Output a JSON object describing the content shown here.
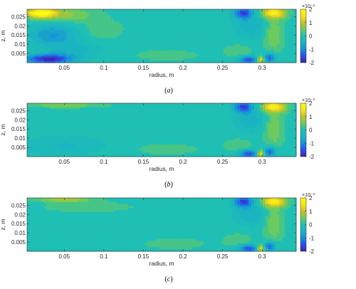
{
  "figure_colors": {
    "colormap": [
      "#3e26a8",
      "#2f4bf0",
      "#1592d9",
      "#1bb3c1",
      "#1fbfb4",
      "#6ccb5e",
      "#c8c129",
      "#f5e51a",
      "#f9fb0e"
    ]
  },
  "chart_data": [
    {
      "type": "heatmap",
      "caption_letter": "a",
      "xlabel": "radius, m",
      "ylabel": "z, m",
      "xlim": [
        0.003,
        0.343
      ],
      "ylim": [
        0.0,
        0.029
      ],
      "xticks": [
        0.05,
        0.1,
        0.15,
        0.2,
        0.25,
        0.3
      ],
      "xtick_labels": [
        "0.05",
        "0.1",
        "0.15",
        "0.2",
        "0.25",
        "0.3"
      ],
      "yticks": [
        0.005,
        0.01,
        0.015,
        0.02,
        0.025
      ],
      "ytick_labels": [
        "0.005",
        "0.01",
        "0.015",
        "0.02",
        "0.025"
      ],
      "colorbar": {
        "range": [
          -2,
          2
        ],
        "ticks": [
          2,
          1,
          0,
          -1,
          -2
        ],
        "tick_labels": [
          "2",
          "1",
          "0",
          "-1",
          "-2"
        ],
        "exponent_label": "×10⁻³"
      },
      "features": [
        {
          "r": 0.02,
          "z": 0.027,
          "value": 2.0,
          "sr": 0.018,
          "sz": 0.0025
        },
        {
          "r": 0.05,
          "z": 0.026,
          "value": 0.7,
          "sr": 0.04,
          "sz": 0.004
        },
        {
          "r": 0.1,
          "z": 0.018,
          "value": 0.35,
          "sr": 0.025,
          "sz": 0.005
        },
        {
          "r": 0.035,
          "z": 0.015,
          "value": -0.9,
          "sr": 0.03,
          "sz": 0.006
        },
        {
          "r": 0.03,
          "z": 0.002,
          "value": -2.0,
          "sr": 0.03,
          "sz": 0.0025
        },
        {
          "r": 0.065,
          "z": 0.007,
          "value": -0.5,
          "sr": 0.03,
          "sz": 0.004
        },
        {
          "r": 0.18,
          "z": 0.004,
          "value": 0.3,
          "sr": 0.04,
          "sz": 0.003
        },
        {
          "r": 0.276,
          "z": 0.027,
          "value": -1.6,
          "sr": 0.012,
          "sz": 0.003
        },
        {
          "r": 0.285,
          "z": 0.02,
          "value": -0.6,
          "sr": 0.018,
          "sz": 0.006
        },
        {
          "r": 0.315,
          "z": 0.027,
          "value": 1.7,
          "sr": 0.015,
          "sz": 0.003
        },
        {
          "r": 0.315,
          "z": 0.015,
          "value": 0.6,
          "sr": 0.012,
          "sz": 0.01
        },
        {
          "r": 0.283,
          "z": 0.0015,
          "value": -1.7,
          "sr": 0.012,
          "sz": 0.002
        },
        {
          "r": 0.298,
          "z": 0.0015,
          "value": 1.6,
          "sr": 0.005,
          "sz": 0.0018
        },
        {
          "r": 0.31,
          "z": 0.0025,
          "value": -1.5,
          "sr": 0.007,
          "sz": 0.0025
        },
        {
          "r": 0.27,
          "z": 0.006,
          "value": 0.3,
          "sr": 0.02,
          "sz": 0.004
        }
      ]
    },
    {
      "type": "heatmap",
      "caption_letter": "b",
      "xlabel": "radius, m",
      "ylabel": "z, m",
      "xlim": [
        0.003,
        0.343
      ],
      "ylim": [
        0.0,
        0.029
      ],
      "xticks": [
        0.05,
        0.1,
        0.15,
        0.2,
        0.25,
        0.3
      ],
      "xtick_labels": [
        "0.05",
        "0.1",
        "0.15",
        "0.2",
        "0.25",
        "0.3"
      ],
      "yticks": [
        0.005,
        0.01,
        0.015,
        0.02,
        0.025
      ],
      "ytick_labels": [
        "0.005",
        "0.01",
        "0.015",
        "0.02",
        "0.025"
      ],
      "colorbar": {
        "range": [
          -2,
          2
        ],
        "ticks": [
          2,
          1,
          0,
          -1,
          -2
        ],
        "tick_labels": [
          "2",
          "1",
          "0",
          "-1",
          "-2"
        ],
        "exponent_label": "×10⁻³"
      },
      "features": [
        {
          "r": 0.05,
          "z": 0.028,
          "value": 0.6,
          "sr": 0.05,
          "sz": 0.0015
        },
        {
          "r": 0.05,
          "z": 0.006,
          "value": -0.4,
          "sr": 0.05,
          "sz": 0.005
        },
        {
          "r": 0.18,
          "z": 0.004,
          "value": 0.3,
          "sr": 0.04,
          "sz": 0.003
        },
        {
          "r": 0.276,
          "z": 0.027,
          "value": -1.6,
          "sr": 0.012,
          "sz": 0.003
        },
        {
          "r": 0.285,
          "z": 0.02,
          "value": -0.6,
          "sr": 0.018,
          "sz": 0.006
        },
        {
          "r": 0.315,
          "z": 0.027,
          "value": 1.7,
          "sr": 0.015,
          "sz": 0.003
        },
        {
          "r": 0.315,
          "z": 0.015,
          "value": 0.6,
          "sr": 0.012,
          "sz": 0.01
        },
        {
          "r": 0.283,
          "z": 0.0015,
          "value": -1.7,
          "sr": 0.012,
          "sz": 0.002
        },
        {
          "r": 0.298,
          "z": 0.0015,
          "value": 1.6,
          "sr": 0.005,
          "sz": 0.0018
        },
        {
          "r": 0.31,
          "z": 0.0025,
          "value": -1.5,
          "sr": 0.007,
          "sz": 0.0025
        },
        {
          "r": 0.27,
          "z": 0.006,
          "value": 0.3,
          "sr": 0.02,
          "sz": 0.004
        }
      ]
    },
    {
      "type": "heatmap",
      "caption_letter": "c",
      "xlabel": "radius, m",
      "ylabel": "z, m",
      "xlim": [
        0.003,
        0.343
      ],
      "ylim": [
        0.0,
        0.029
      ],
      "xticks": [
        0.05,
        0.1,
        0.15,
        0.2,
        0.25,
        0.3
      ],
      "xtick_labels": [
        "0.05",
        "0.1",
        "0.15",
        "0.2",
        "0.25",
        "0.3"
      ],
      "yticks": [
        0.005,
        0.01,
        0.015,
        0.02,
        0.025
      ],
      "ytick_labels": [
        "0.005",
        "0.01",
        "0.015",
        "0.02",
        "0.025"
      ],
      "colorbar": {
        "range": [
          -2,
          2
        ],
        "ticks": [
          2,
          1,
          0,
          -1,
          -2
        ],
        "tick_labels": [
          "2",
          "1",
          "0",
          "-1",
          "-2"
        ],
        "exponent_label": "×10⁻³"
      },
      "features": [
        {
          "r": 0.05,
          "z": 0.028,
          "value": 0.9,
          "sr": 0.035,
          "sz": 0.0012
        },
        {
          "r": 0.08,
          "z": 0.024,
          "value": 0.3,
          "sr": 0.06,
          "sz": 0.003
        },
        {
          "r": 0.19,
          "z": 0.004,
          "value": 0.3,
          "sr": 0.04,
          "sz": 0.003
        },
        {
          "r": 0.276,
          "z": 0.027,
          "value": -1.6,
          "sr": 0.012,
          "sz": 0.003
        },
        {
          "r": 0.285,
          "z": 0.02,
          "value": -0.6,
          "sr": 0.018,
          "sz": 0.006
        },
        {
          "r": 0.315,
          "z": 0.027,
          "value": 1.7,
          "sr": 0.015,
          "sz": 0.003
        },
        {
          "r": 0.315,
          "z": 0.015,
          "value": 0.6,
          "sr": 0.012,
          "sz": 0.01
        },
        {
          "r": 0.283,
          "z": 0.0015,
          "value": -1.7,
          "sr": 0.012,
          "sz": 0.002
        },
        {
          "r": 0.298,
          "z": 0.0015,
          "value": 1.6,
          "sr": 0.005,
          "sz": 0.0018
        },
        {
          "r": 0.31,
          "z": 0.0025,
          "value": -1.5,
          "sr": 0.007,
          "sz": 0.0025
        },
        {
          "r": 0.27,
          "z": 0.006,
          "value": 0.3,
          "sr": 0.02,
          "sz": 0.004
        }
      ]
    }
  ]
}
